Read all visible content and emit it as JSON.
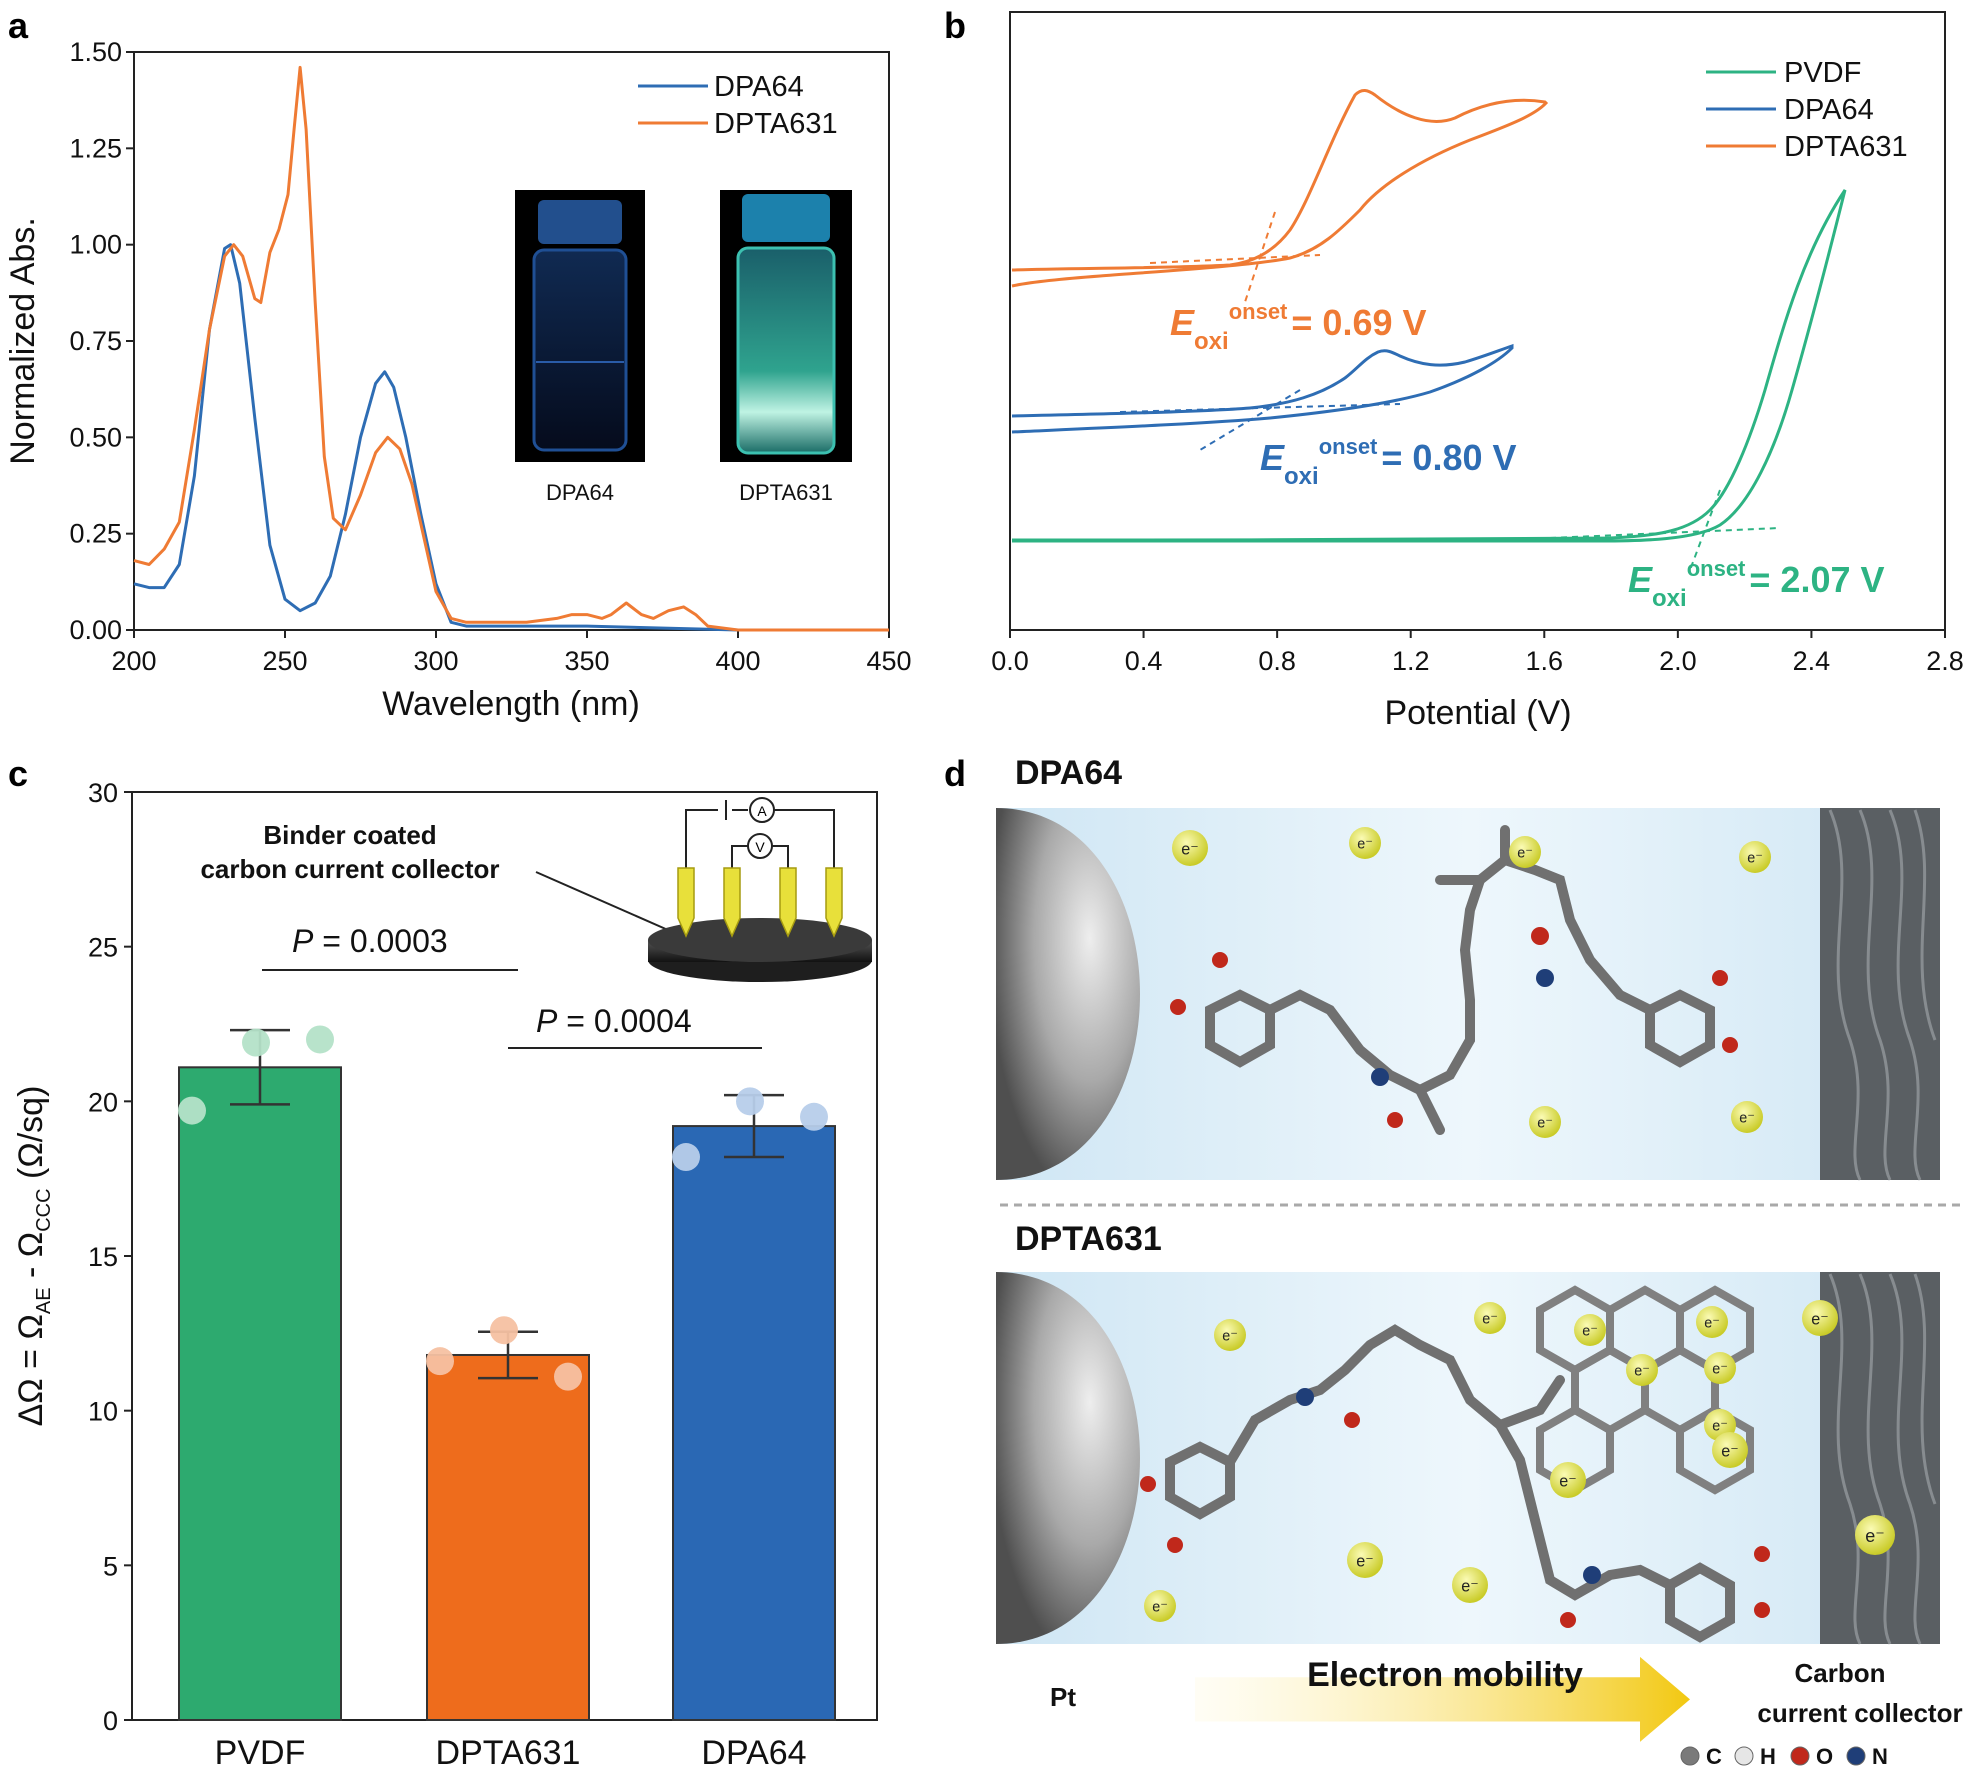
{
  "panels": {
    "a": "a",
    "b": "b",
    "c": "c",
    "d": "d"
  },
  "chart_data": [
    {
      "id": "a",
      "type": "line",
      "xlabel": "Wavelength (nm)",
      "ylabel": "Normalized Abs.",
      "xlim": [
        200,
        450
      ],
      "ylim": [
        0,
        1.5
      ],
      "xticks": [
        200,
        250,
        300,
        350,
        400,
        450
      ],
      "yticks": [
        "0.00",
        "0.25",
        "0.50",
        "0.75",
        "1.00",
        "1.25",
        "1.50"
      ],
      "legend_position": "top-right",
      "series": [
        {
          "name": "DPA64",
          "color": "#2E6DB4",
          "points": [
            [
              200,
              0.12
            ],
            [
              205,
              0.11
            ],
            [
              210,
              0.11
            ],
            [
              215,
              0.17
            ],
            [
              220,
              0.4
            ],
            [
              225,
              0.78
            ],
            [
              230,
              0.99
            ],
            [
              232,
              1.0
            ],
            [
              235,
              0.9
            ],
            [
              240,
              0.55
            ],
            [
              245,
              0.22
            ],
            [
              250,
              0.08
            ],
            [
              255,
              0.05
            ],
            [
              260,
              0.07
            ],
            [
              265,
              0.14
            ],
            [
              270,
              0.3
            ],
            [
              275,
              0.5
            ],
            [
              280,
              0.64
            ],
            [
              283,
              0.67
            ],
            [
              286,
              0.63
            ],
            [
              290,
              0.5
            ],
            [
              295,
              0.3
            ],
            [
              300,
              0.12
            ],
            [
              305,
              0.02
            ],
            [
              310,
              0.01
            ],
            [
              350,
              0.01
            ],
            [
              400,
              0.0
            ],
            [
              450,
              0.0
            ]
          ]
        },
        {
          "name": "DPTA631",
          "color": "#EF7B34",
          "points": [
            [
              200,
              0.18
            ],
            [
              205,
              0.17
            ],
            [
              210,
              0.21
            ],
            [
              215,
              0.28
            ],
            [
              220,
              0.52
            ],
            [
              225,
              0.78
            ],
            [
              230,
              0.97
            ],
            [
              233,
              1.0
            ],
            [
              236,
              0.97
            ],
            [
              240,
              0.86
            ],
            [
              242,
              0.85
            ],
            [
              245,
              0.98
            ],
            [
              248,
              1.04
            ],
            [
              251,
              1.13
            ],
            [
              253,
              1.3
            ],
            [
              255,
              1.46
            ],
            [
              257,
              1.3
            ],
            [
              260,
              0.85
            ],
            [
              263,
              0.45
            ],
            [
              266,
              0.29
            ],
            [
              270,
              0.26
            ],
            [
              275,
              0.35
            ],
            [
              280,
              0.46
            ],
            [
              284,
              0.5
            ],
            [
              288,
              0.47
            ],
            [
              292,
              0.38
            ],
            [
              296,
              0.24
            ],
            [
              300,
              0.1
            ],
            [
              305,
              0.03
            ],
            [
              310,
              0.02
            ],
            [
              320,
              0.02
            ],
            [
              330,
              0.02
            ],
            [
              340,
              0.03
            ],
            [
              345,
              0.04
            ],
            [
              350,
              0.04
            ],
            [
              355,
              0.03
            ],
            [
              358,
              0.04
            ],
            [
              363,
              0.07
            ],
            [
              368,
              0.04
            ],
            [
              372,
              0.03
            ],
            [
              377,
              0.05
            ],
            [
              382,
              0.06
            ],
            [
              386,
              0.04
            ],
            [
              390,
              0.01
            ],
            [
              400,
              0.0
            ],
            [
              450,
              0.0
            ]
          ]
        }
      ],
      "inset_labels": [
        "DPA64",
        "DPTA631"
      ]
    },
    {
      "id": "b",
      "type": "line",
      "xlabel": "Potential (V)",
      "ylabel": "",
      "xlim": [
        0.0,
        2.8
      ],
      "xticks": [
        "0.0",
        "0.4",
        "0.8",
        "1.2",
        "1.6",
        "2.0",
        "2.4",
        "2.8"
      ],
      "legend_position": "top-right",
      "series": [
        {
          "name": "PVDF",
          "color": "#2DB383",
          "onset_prefix": "E",
          "onset_sub": "oxi",
          "onset_sup": "onset",
          "onset_value": "= 2.07 V"
        },
        {
          "name": "DPA64",
          "color": "#2E6DB4",
          "onset_prefix": "E",
          "onset_sub": "oxi",
          "onset_sup": "onset",
          "onset_value": "= 0.80 V"
        },
        {
          "name": "DPTA631",
          "color": "#EF7B34",
          "onset_prefix": "E",
          "onset_sub": "oxi",
          "onset_sup": "onset",
          "onset_value": "= 0.69 V"
        }
      ]
    },
    {
      "id": "c",
      "type": "bar",
      "categories": [
        "PVDF",
        "DPTA631",
        "DPA64"
      ],
      "values": [
        21.1,
        11.8,
        19.2
      ],
      "errors": [
        1.2,
        0.75,
        1.0
      ],
      "colors": [
        "#2DAA6F",
        "#EE6C1C",
        "#2A68B4"
      ],
      "point_colors": [
        "#B4E2C8",
        "#F6C1A2",
        "#B7CEEA"
      ],
      "points": [
        [
          21.9,
          19.7,
          22.0
        ],
        [
          12.6,
          11.6,
          11.1
        ],
        [
          20.0,
          18.2,
          19.5
        ]
      ],
      "ylabel_main": "ΔΩ = Ω",
      "ylabel_sub1": "AE",
      "ylabel_mid": " - Ω",
      "ylabel_sub2": "CCC",
      "ylabel_unit": " (Ω/sq)",
      "ylim": [
        0,
        30
      ],
      "yticks": [
        "0",
        "5",
        "10",
        "15",
        "20",
        "25",
        "30"
      ],
      "annotations": {
        "p1_italic": "P",
        "p1_value": " = 0.0003",
        "p2_italic": "P",
        "p2_value": " = 0.0004",
        "inset_line1": "Binder coated",
        "inset_line2": "carbon current collector",
        "meter_a": "A",
        "meter_v": "V"
      }
    }
  ],
  "panel_d": {
    "title_top": "DPA64",
    "title_bottom": "DPTA631",
    "electron": "e⁻",
    "left_label": "Pt",
    "arrow_label": "Electron mobility",
    "right_label_1": "Carbon",
    "right_label_2": "current collector",
    "legend": [
      {
        "symbol": "C",
        "color": "#7a7a7a"
      },
      {
        "symbol": "H",
        "color": "#e6e6e6"
      },
      {
        "symbol": "O",
        "color": "#c0281b"
      },
      {
        "symbol": "N",
        "color": "#1f3e78"
      }
    ]
  }
}
